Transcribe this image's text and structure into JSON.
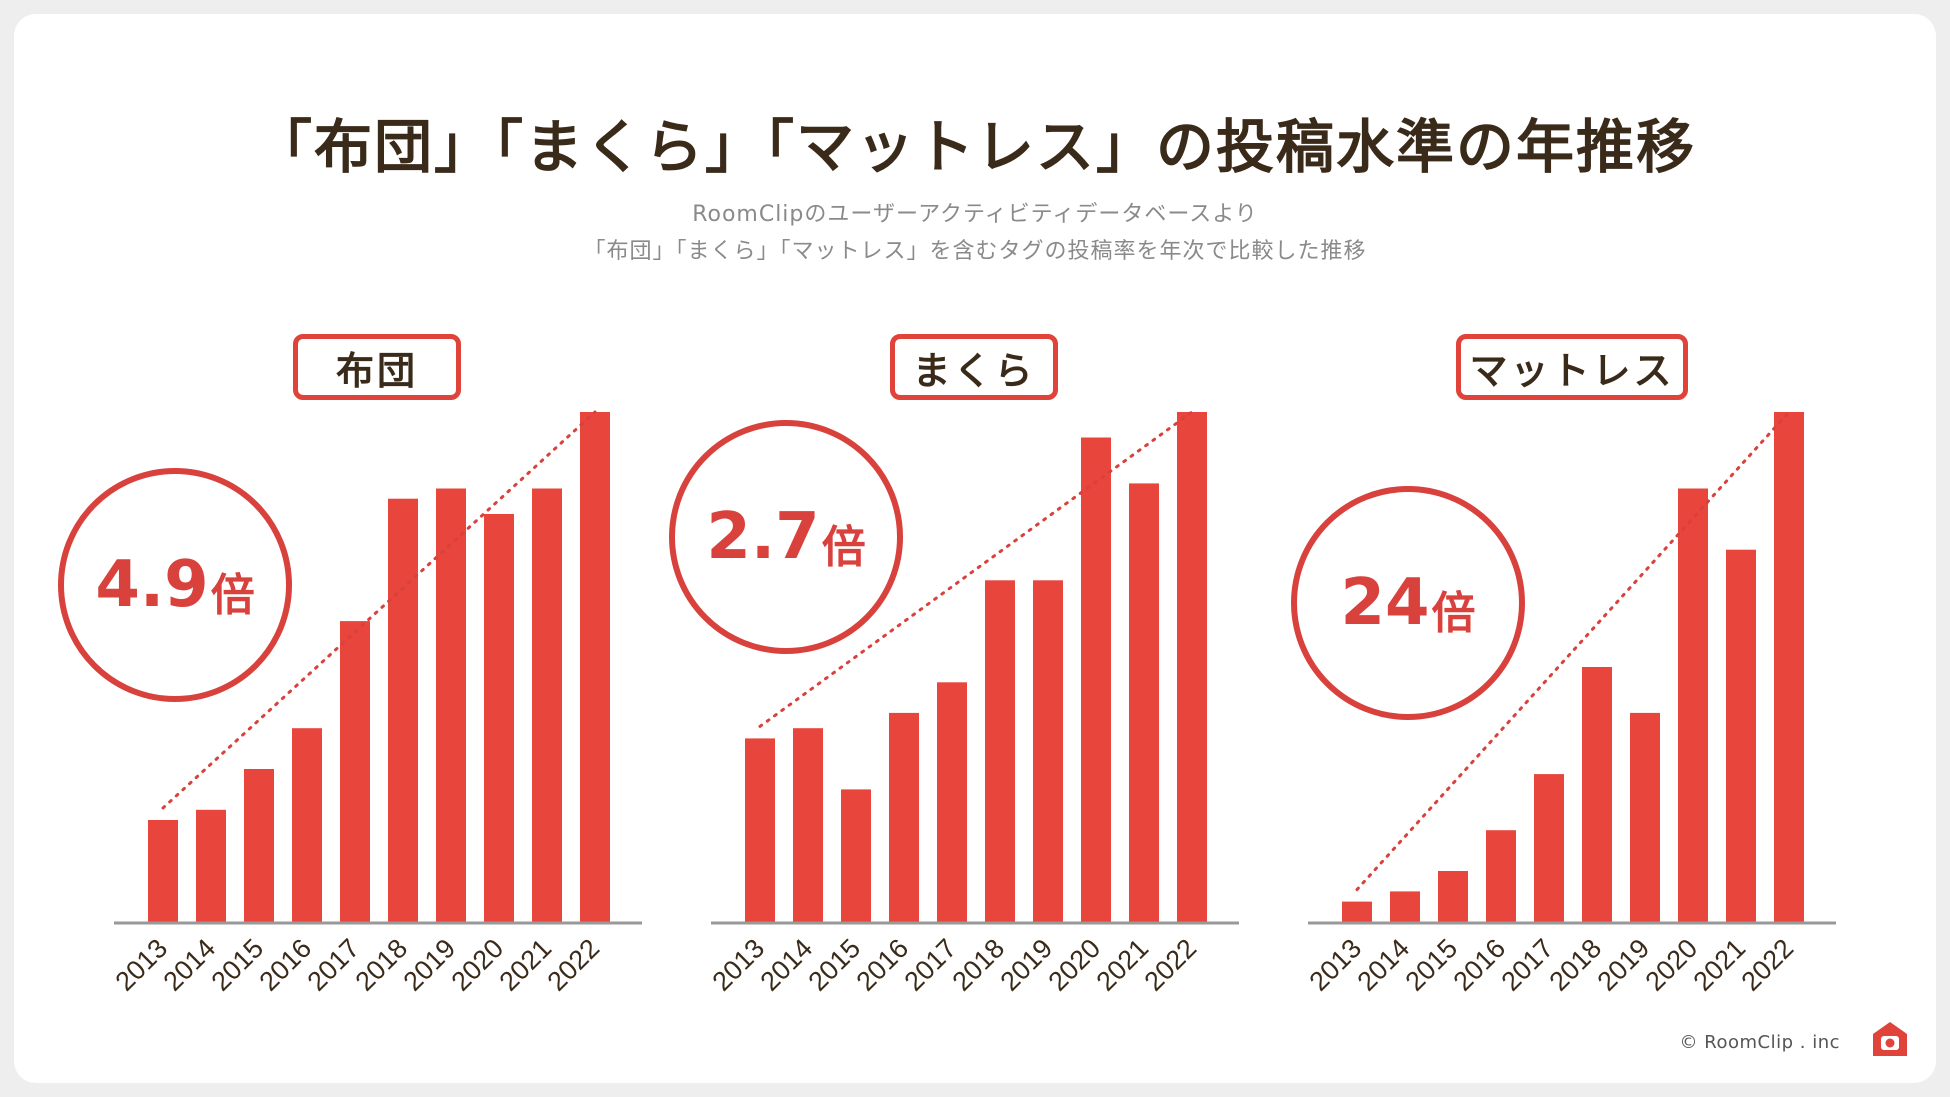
{
  "title": "「布団」「まくら」「マットレス」の投稿水準の年推移",
  "subtitle_line1": "RoomClipのユーザーアクティビティデータベースより",
  "subtitle_line2": "「布団」「まくら」「マットレス」を含むタグの投稿率を年次で比較した推移",
  "footer": "© RoomClip . inc",
  "colors": {
    "bar": "#e8453c",
    "accent": "#d8413c",
    "axis": "#999999",
    "text": "#3a2a1a"
  },
  "chart_data": [
    {
      "type": "bar",
      "title": "布団",
      "ratio_value": "4.9",
      "ratio_unit": "倍",
      "categories": [
        "2013",
        "2014",
        "2015",
        "2016",
        "2017",
        "2018",
        "2019",
        "2020",
        "2021",
        "2022"
      ],
      "values": [
        20,
        22,
        30,
        38,
        59,
        83,
        85,
        80,
        85,
        100
      ],
      "ylim": [
        0,
        100
      ],
      "trendline": true
    },
    {
      "type": "bar",
      "title": "まくら",
      "ratio_value": "2.7",
      "ratio_unit": "倍",
      "categories": [
        "2013",
        "2014",
        "2015",
        "2016",
        "2017",
        "2018",
        "2019",
        "2020",
        "2021",
        "2022"
      ],
      "values": [
        36,
        38,
        26,
        41,
        47,
        67,
        67,
        95,
        86,
        100
      ],
      "ylim": [
        0,
        100
      ],
      "trendline": true
    },
    {
      "type": "bar",
      "title": "マットレス",
      "ratio_value": "24",
      "ratio_unit": "倍",
      "categories": [
        "2013",
        "2014",
        "2015",
        "2016",
        "2017",
        "2018",
        "2019",
        "2020",
        "2021",
        "2022"
      ],
      "values": [
        4,
        6,
        10,
        18,
        29,
        50,
        41,
        85,
        73,
        100
      ],
      "ylim": [
        0,
        100
      ],
      "trendline": true
    }
  ]
}
